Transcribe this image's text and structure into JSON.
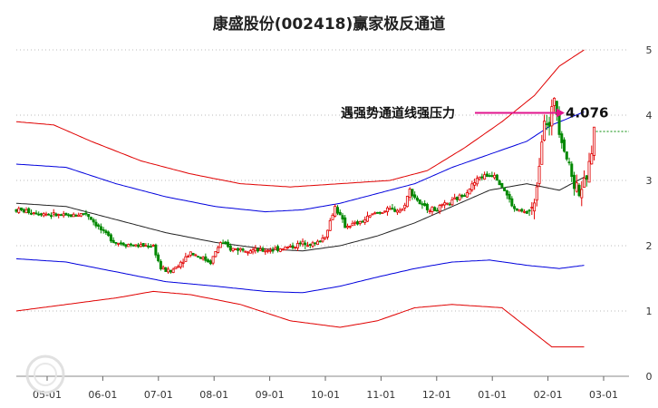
{
  "chart_data": {
    "type": "candlestick",
    "title": "康盛股份(002418)赢家极反通道",
    "x_ticks": [
      "05-01",
      "06-01",
      "07-01",
      "08-01",
      "09-01",
      "10-01",
      "11-01",
      "12-01",
      "01-01",
      "02-01",
      "03-01"
    ],
    "y_ticks": [
      "0",
      "1",
      "2",
      "3",
      "4",
      "5"
    ],
    "ylim": [
      0,
      5
    ],
    "grid": "horizontal-dotted",
    "annotation": {
      "label": "遇强势通道线强压力",
      "value": "4.076",
      "value_num": 4.076
    },
    "colors": {
      "up": "#e00000",
      "down": "#008800",
      "outer_band": "#e00000",
      "mid_band": "#0000dd",
      "center": "#222222",
      "arrow": "#e0148c",
      "level": "#008800"
    },
    "bands": {
      "upper_outer": [
        [
          0,
          3.9
        ],
        [
          15,
          3.85
        ],
        [
          30,
          3.6
        ],
        [
          50,
          3.3
        ],
        [
          70,
          3.1
        ],
        [
          90,
          2.95
        ],
        [
          110,
          2.9
        ],
        [
          130,
          2.95
        ],
        [
          150,
          3.0
        ],
        [
          165,
          3.15
        ],
        [
          180,
          3.5
        ],
        [
          195,
          3.9
        ],
        [
          208,
          4.3
        ],
        [
          218,
          4.75
        ],
        [
          228,
          5.0
        ]
      ],
      "upper_mid": [
        [
          0,
          3.25
        ],
        [
          20,
          3.2
        ],
        [
          40,
          2.95
        ],
        [
          60,
          2.75
        ],
        [
          80,
          2.6
        ],
        [
          100,
          2.52
        ],
        [
          115,
          2.55
        ],
        [
          130,
          2.65
        ],
        [
          145,
          2.8
        ],
        [
          160,
          2.95
        ],
        [
          175,
          3.2
        ],
        [
          190,
          3.4
        ],
        [
          205,
          3.6
        ],
        [
          215,
          3.85
        ],
        [
          228,
          4.05
        ]
      ],
      "center": [
        [
          0,
          2.65
        ],
        [
          20,
          2.6
        ],
        [
          40,
          2.4
        ],
        [
          60,
          2.2
        ],
        [
          80,
          2.05
        ],
        [
          100,
          1.95
        ],
        [
          115,
          1.92
        ],
        [
          130,
          2.0
        ],
        [
          145,
          2.15
        ],
        [
          160,
          2.35
        ],
        [
          175,
          2.6
        ],
        [
          190,
          2.85
        ],
        [
          205,
          2.95
        ],
        [
          218,
          2.85
        ],
        [
          228,
          3.05
        ]
      ],
      "lower_mid": [
        [
          0,
          1.8
        ],
        [
          20,
          1.75
        ],
        [
          40,
          1.6
        ],
        [
          60,
          1.45
        ],
        [
          80,
          1.38
        ],
        [
          100,
          1.3
        ],
        [
          115,
          1.28
        ],
        [
          130,
          1.38
        ],
        [
          145,
          1.52
        ],
        [
          160,
          1.65
        ],
        [
          175,
          1.75
        ],
        [
          190,
          1.78
        ],
        [
          205,
          1.7
        ],
        [
          218,
          1.65
        ],
        [
          228,
          1.7
        ]
      ],
      "lower_outer": [
        [
          0,
          1.0
        ],
        [
          20,
          1.1
        ],
        [
          40,
          1.2
        ],
        [
          55,
          1.3
        ],
        [
          70,
          1.25
        ],
        [
          90,
          1.1
        ],
        [
          110,
          0.85
        ],
        [
          130,
          0.75
        ],
        [
          145,
          0.85
        ],
        [
          160,
          1.05
        ],
        [
          175,
          1.1
        ],
        [
          195,
          1.05
        ],
        [
          205,
          0.75
        ],
        [
          215,
          0.45
        ],
        [
          228,
          0.45
        ]
      ]
    },
    "price_path": [
      [
        0,
        2.55
      ],
      [
        10,
        2.5
      ],
      [
        20,
        2.45
      ],
      [
        28,
        2.5
      ],
      [
        35,
        2.2
      ],
      [
        40,
        2.05
      ],
      [
        48,
        2.0
      ],
      [
        55,
        2.0
      ],
      [
        58,
        1.65
      ],
      [
        62,
        1.6
      ],
      [
        66,
        1.75
      ],
      [
        70,
        1.9
      ],
      [
        74,
        1.82
      ],
      [
        78,
        1.75
      ],
      [
        82,
        2.05
      ],
      [
        86,
        1.95
      ],
      [
        92,
        1.95
      ],
      [
        98,
        1.92
      ],
      [
        104,
        1.95
      ],
      [
        110,
        1.98
      ],
      [
        116,
        2.05
      ],
      [
        120,
        2.02
      ],
      [
        124,
        2.15
      ],
      [
        128,
        2.6
      ],
      [
        132,
        2.3
      ],
      [
        138,
        2.35
      ],
      [
        144,
        2.5
      ],
      [
        150,
        2.55
      ],
      [
        155,
        2.55
      ],
      [
        158,
        2.85
      ],
      [
        163,
        2.6
      ],
      [
        168,
        2.55
      ],
      [
        174,
        2.65
      ],
      [
        180,
        2.8
      ],
      [
        186,
        3.05
      ],
      [
        192,
        3.1
      ],
      [
        196,
        2.85
      ],
      [
        200,
        2.55
      ],
      [
        205,
        2.5
      ],
      [
        208,
        2.6
      ],
      [
        210,
        3.3
      ],
      [
        212,
        4.0
      ],
      [
        214,
        3.8
      ],
      [
        216,
        4.3
      ],
      [
        218,
        3.8
      ],
      [
        220,
        3.5
      ],
      [
        222,
        3.2
      ],
      [
        224,
        2.95
      ],
      [
        226,
        2.85
      ],
      [
        228,
        2.95
      ],
      [
        230,
        3.2
      ],
      [
        232,
        3.75
      ]
    ],
    "level_line": 3.75
  }
}
